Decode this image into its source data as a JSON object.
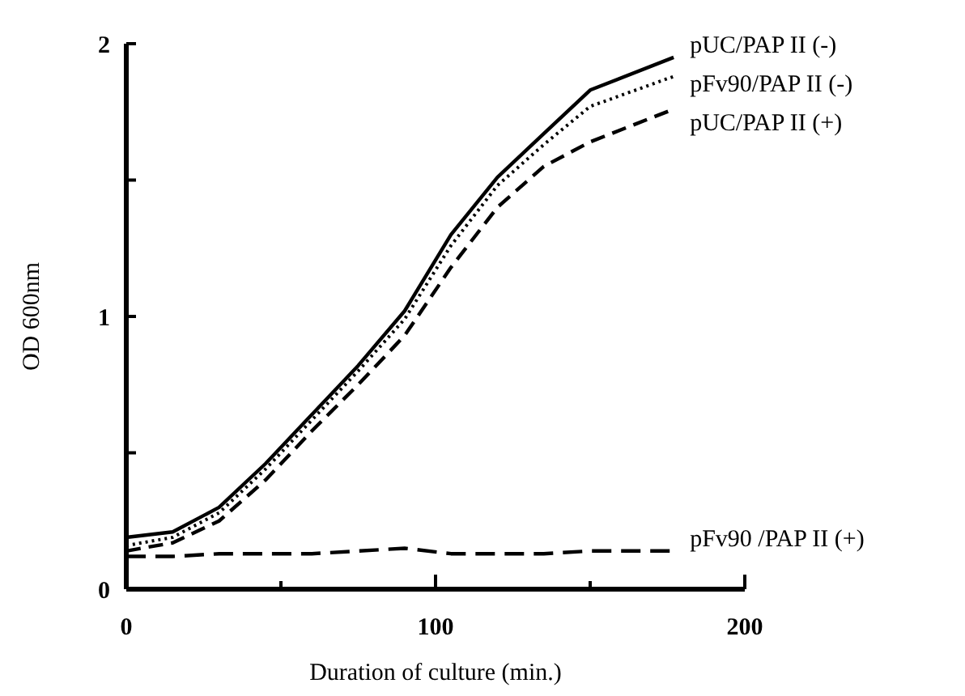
{
  "chart_data": {
    "type": "line",
    "xlabel": "Duration of culture (min.)",
    "ylabel": "OD 600nm",
    "xlim": [
      0,
      200
    ],
    "ylim": [
      0,
      2
    ],
    "xticks": [
      0,
      {
        "value": 50,
        "label": null
      },
      100,
      {
        "value": 150,
        "label": null
      },
      200
    ],
    "yticks": [
      0,
      {
        "value": 0.5,
        "label": null
      },
      1,
      {
        "value": 1.5,
        "label": null
      },
      2
    ],
    "grid": false,
    "marker": "none",
    "x": [
      0,
      15,
      30,
      45,
      60,
      75,
      90,
      105,
      120,
      135,
      150,
      177
    ],
    "series": [
      {
        "name": "pUC/PAP II (-)",
        "color": "#000000",
        "line_style": "solid",
        "values": [
          0.19,
          0.21,
          0.3,
          0.46,
          0.64,
          0.82,
          1.02,
          1.3,
          1.51,
          1.67,
          1.83,
          1.95
        ]
      },
      {
        "name": "pFv90/PAP II (-)",
        "color": "#000000",
        "line_style": "dotted",
        "values": [
          0.16,
          0.19,
          0.28,
          0.44,
          0.62,
          0.8,
          0.99,
          1.26,
          1.48,
          1.63,
          1.77,
          1.88
        ]
      },
      {
        "name": "pUC/PAP II (+)",
        "color": "#000000",
        "line_style": "dashed",
        "values": [
          0.14,
          0.17,
          0.25,
          0.4,
          0.58,
          0.75,
          0.93,
          1.18,
          1.4,
          1.55,
          1.64,
          1.76
        ]
      },
      {
        "name": "pFv90 /PAP II (+)",
        "color": "#000000",
        "line_style": "dashed",
        "values": [
          0.12,
          0.12,
          0.13,
          0.13,
          0.13,
          0.14,
          0.15,
          0.13,
          0.13,
          0.13,
          0.14,
          0.14
        ]
      }
    ]
  }
}
